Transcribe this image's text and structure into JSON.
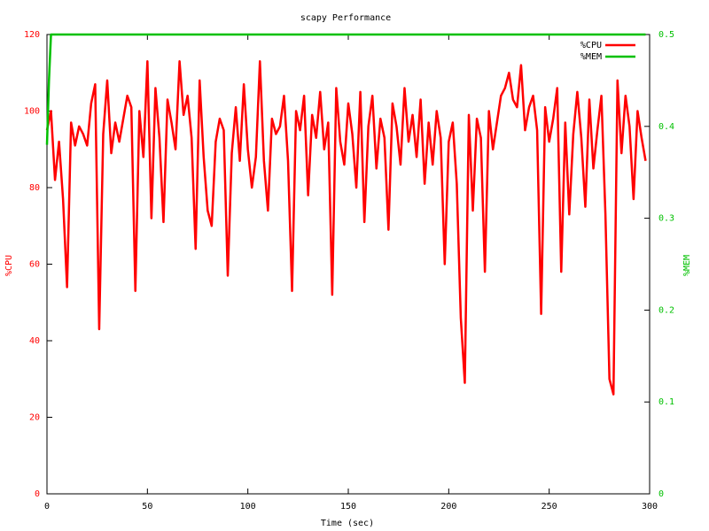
{
  "chart_data": {
    "type": "line",
    "title": "scapy Performance",
    "xlabel": "Time (sec)",
    "ylabel": "%CPU",
    "y2label": "%MEM",
    "xlim": [
      0,
      300
    ],
    "xticks": [
      0,
      50,
      100,
      150,
      200,
      250,
      300
    ],
    "ylim": [
      0,
      120
    ],
    "yticks": [
      0,
      20,
      40,
      60,
      80,
      100,
      120
    ],
    "y2lim": [
      0,
      0.5
    ],
    "y2ticks": [
      0,
      0.1,
      0.2,
      0.3,
      0.4,
      0.5
    ],
    "legend": "top-right",
    "x": [
      0,
      2,
      4,
      6,
      8,
      10,
      12,
      14,
      16,
      18,
      20,
      22,
      24,
      26,
      28,
      30,
      32,
      34,
      36,
      38,
      40,
      42,
      44,
      46,
      48,
      50,
      52,
      54,
      56,
      58,
      60,
      62,
      64,
      66,
      68,
      70,
      72,
      74,
      76,
      78,
      80,
      82,
      84,
      86,
      88,
      90,
      92,
      94,
      96,
      98,
      100,
      102,
      104,
      106,
      108,
      110,
      112,
      114,
      116,
      118,
      120,
      122,
      124,
      126,
      128,
      130,
      132,
      134,
      136,
      138,
      140,
      142,
      144,
      146,
      148,
      150,
      152,
      154,
      156,
      158,
      160,
      162,
      164,
      166,
      168,
      170,
      172,
      174,
      176,
      178,
      180,
      182,
      184,
      186,
      188,
      190,
      192,
      194,
      196,
      198,
      200,
      202,
      204,
      206,
      208,
      210,
      212,
      214,
      216,
      218,
      220,
      222,
      224,
      226,
      228,
      230,
      232,
      234,
      236,
      238,
      240,
      242,
      244,
      246,
      248,
      250,
      252,
      254,
      256,
      258,
      260,
      262,
      264,
      266,
      268,
      270,
      272,
      274,
      276,
      278,
      280,
      282,
      284,
      286,
      288,
      290,
      292,
      294,
      296,
      298
    ],
    "series": [
      {
        "name": "%CPU",
        "color": "#ff0000",
        "values": [
          95,
          100,
          82,
          92,
          77,
          54,
          97,
          91,
          96,
          94,
          91,
          102,
          107,
          43,
          94,
          108,
          89,
          97,
          92,
          98,
          104,
          101,
          53,
          100,
          88,
          113,
          72,
          106,
          93,
          71,
          103,
          97,
          90,
          113,
          99,
          104,
          93,
          64,
          108,
          88,
          74,
          70,
          92,
          98,
          95,
          57,
          89,
          101,
          87,
          107,
          90,
          80,
          88,
          113,
          87,
          74,
          98,
          94,
          96,
          104,
          87,
          53,
          100,
          95,
          104,
          78,
          99,
          93,
          105,
          90,
          97,
          52,
          106,
          92,
          86,
          102,
          94,
          80,
          105,
          71,
          96,
          104,
          85,
          98,
          93,
          69,
          102,
          96,
          86,
          106,
          92,
          99,
          88,
          103,
          81,
          97,
          86,
          100,
          93,
          60,
          92,
          97,
          81,
          46,
          29,
          99,
          74,
          98,
          93,
          58,
          100,
          90,
          97,
          104,
          106,
          110,
          103,
          101,
          112,
          95,
          101,
          104,
          95,
          47,
          101,
          92,
          98,
          106,
          58,
          97,
          73,
          94,
          105,
          93,
          75,
          103,
          85,
          95,
          104,
          73,
          30,
          26,
          108,
          89,
          104,
          96,
          77,
          100,
          93,
          87
        ]
      },
      {
        "name": "%MEM",
        "color": "#00c000",
        "axis": "y2",
        "x": [
          0,
          1,
          2,
          298
        ],
        "values": [
          0.38,
          0.45,
          0.5,
          0.5
        ]
      }
    ]
  }
}
